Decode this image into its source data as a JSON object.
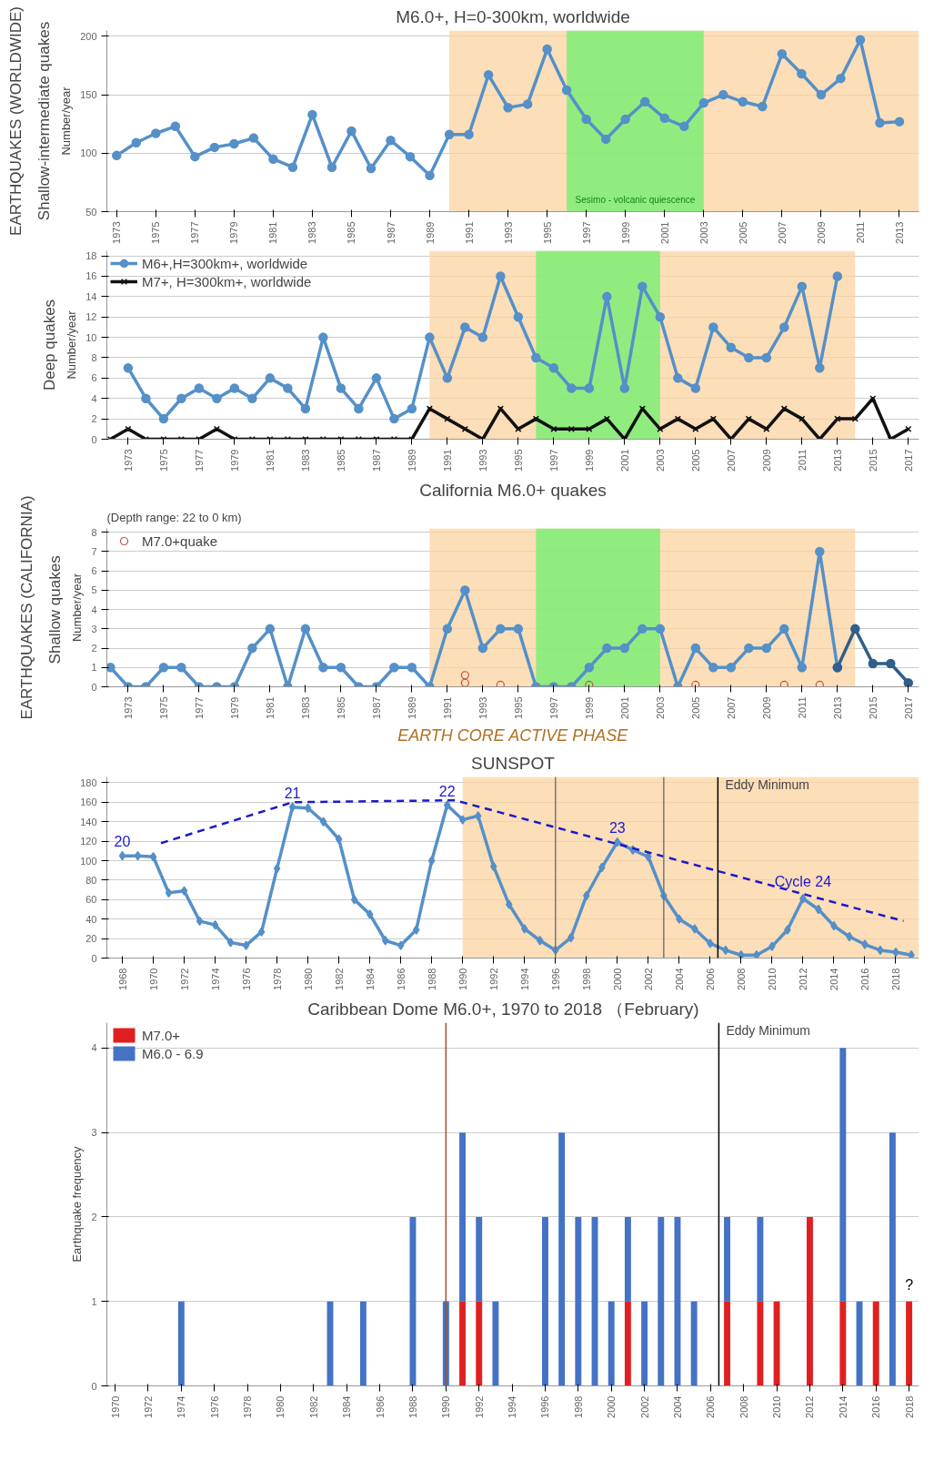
{
  "chart_data": [
    {
      "type": "line",
      "title": "M6.0+, H=0-300km, worldwide",
      "ylabel": "Number/year",
      "annotations": [
        "Shallow-intermediate quakes",
        "EARTHQUAKES (WORLDWIDE)"
      ],
      "x": [
        1973,
        1974,
        1975,
        1976,
        1977,
        1978,
        1979,
        1980,
        1981,
        1982,
        1983,
        1984,
        1985,
        1986,
        1987,
        1988,
        1989,
        1990,
        1991,
        1992,
        1993,
        1994,
        1995,
        1996,
        1997,
        1998,
        1999,
        2000,
        2001,
        2002,
        2003,
        2004,
        2005,
        2006,
        2007,
        2008,
        2009,
        2010,
        2011,
        2012,
        2013
      ],
      "series": [
        {
          "color": "#5590c8",
          "values": [
            98,
            109,
            117,
            123,
            97,
            105,
            108,
            113,
            95,
            88,
            133,
            88,
            119,
            87,
            111,
            97,
            81,
            116,
            116,
            167,
            139,
            142,
            189,
            154,
            129,
            112,
            129,
            144,
            130,
            123,
            143,
            150,
            144,
            140,
            185,
            168,
            150,
            164,
            197,
            126,
            127
          ]
        }
      ],
      "marker": "circle",
      "xlim": [
        1972.5,
        2014
      ],
      "ylim": [
        50,
        205
      ],
      "yticks": [
        50,
        100,
        150,
        200
      ],
      "xticks": [
        1973,
        1975,
        1977,
        1979,
        1981,
        1983,
        1985,
        1987,
        1989,
        1991,
        1993,
        1995,
        1997,
        1999,
        2001,
        2003,
        2005,
        2007,
        2009,
        2011,
        2013
      ],
      "bands": [
        {
          "axis": "x",
          "from": 1990,
          "to": 2014,
          "color": "#fbd3a0"
        },
        {
          "axis": "x",
          "from": 1996,
          "to": 2003,
          "color": "#6ef06e",
          "label": "Sesimo - volcanic quiescence"
        }
      ],
      "grid": "y"
    },
    {
      "type": "line",
      "ylabel": "Number/year",
      "annotations": [
        "Deep quakes"
      ],
      "series": [
        {
          "name": "M6+,H=300km+, worldwide",
          "color": "#5590c8",
          "x": [
            1973,
            1974,
            1975,
            1976,
            1977,
            1978,
            1979,
            1980,
            1981,
            1982,
            1983,
            1984,
            1985,
            1986,
            1987,
            1988,
            1989,
            1990,
            1991,
            1992,
            1993,
            1994,
            1995,
            1996,
            1997,
            1998,
            1999,
            2000,
            2001,
            2002,
            2003,
            2004,
            2005,
            2006,
            2007,
            2008,
            2009,
            2010,
            2011,
            2012,
            2013
          ],
          "values": [
            7,
            4,
            2,
            4,
            5,
            4,
            5,
            4,
            6,
            5,
            3,
            10,
            5,
            3,
            6,
            2,
            3,
            10,
            6,
            11,
            10,
            16,
            12,
            8,
            7,
            5,
            5,
            14,
            5,
            15,
            12,
            6,
            5,
            11,
            9,
            8,
            8,
            11,
            15,
            7,
            16
          ]
        },
        {
          "name": "M7+, H=300km+, worldwide",
          "color": "#111111",
          "marker": "cross",
          "x": [
            1972,
            1973,
            1974,
            1975,
            1976,
            1977,
            1978,
            1979,
            1980,
            1981,
            1982,
            1983,
            1984,
            1985,
            1986,
            1987,
            1988,
            1989,
            1990,
            1991,
            1992,
            1993,
            1994,
            1995,
            1996,
            1997,
            1998,
            1999,
            2000,
            2001,
            2002,
            2003,
            2004,
            2005,
            2006,
            2007,
            2008,
            2009,
            2010,
            2011,
            2012,
            2013,
            2014,
            2015,
            2016,
            2017
          ],
          "values": [
            0,
            1,
            0,
            0,
            0,
            0,
            1,
            0,
            0,
            0,
            0,
            0,
            0,
            0,
            0,
            0,
            0,
            0,
            3,
            2,
            1,
            0,
            3,
            1,
            2,
            1,
            1,
            1,
            2,
            0,
            3,
            1,
            2,
            1,
            2,
            0,
            2,
            1,
            3,
            2,
            0,
            2,
            2,
            4,
            0,
            1
          ]
        }
      ],
      "marker": "circle",
      "legend": "top left",
      "xlim": [
        1971.8,
        2017.6
      ],
      "ylim": [
        0,
        18.5
      ],
      "yticks": [
        0,
        2,
        4,
        6,
        8,
        10,
        12,
        14,
        16,
        18
      ],
      "xticks": [
        1973,
        1975,
        1977,
        1979,
        1981,
        1983,
        1985,
        1987,
        1989,
        1991,
        1993,
        1995,
        1997,
        1999,
        2001,
        2003,
        2005,
        2007,
        2009,
        2011,
        2013,
        2015,
        2017
      ],
      "bands": [
        {
          "axis": "x",
          "from": 1990,
          "to": 2014,
          "color": "#fbd3a0"
        },
        {
          "axis": "x",
          "from": 1996,
          "to": 2003,
          "color": "#6ef06e"
        }
      ],
      "grid": "y"
    },
    {
      "type": "line",
      "title": "California M6.0+ quakes",
      "subtitle": "(Depth range:  22 to 0 km)",
      "ylabel": "Number/year",
      "xlabel": "EARTH CORE ACTIVE PHASE",
      "annotations": [
        "Shallow  quakes",
        "EARTHQUAKES (CALIFORNIA)"
      ],
      "series": [
        {
          "color": "#5590c8",
          "x": [
            1972,
            1973,
            1974,
            1975,
            1976,
            1977,
            1978,
            1979,
            1980,
            1981,
            1982,
            1983,
            1984,
            1985,
            1986,
            1987,
            1988,
            1989,
            1990,
            1991,
            1992,
            1993,
            1994,
            1995,
            1996,
            1997,
            1998,
            1999,
            2000,
            2001,
            2002,
            2003,
            2004,
            2005,
            2006,
            2007,
            2008,
            2009,
            2010,
            2011,
            2012,
            2013
          ],
          "values": [
            1,
            0,
            0,
            1,
            1,
            0,
            0,
            0,
            2,
            3,
            0,
            3,
            1,
            1,
            0,
            0,
            1,
            1,
            0,
            3,
            5,
            2,
            3,
            3,
            0,
            0,
            0,
            1,
            2,
            2,
            3,
            3,
            0,
            2,
            1,
            1,
            2,
            2,
            3,
            1,
            7,
            1
          ]
        },
        {
          "color": "#2f5f8a",
          "x": [
            2013,
            2014,
            2015,
            2016,
            2017
          ],
          "values": [
            1,
            3,
            1.2,
            1.2,
            0.2
          ]
        },
        {
          "name": "M7.0+quake",
          "type": "scatter",
          "color": "#c0504d",
          "x": [
            1992,
            1992,
            1994,
            1999,
            2005,
            2010,
            2012
          ],
          "values": [
            0.6,
            0.2,
            0.1,
            0.1,
            0.1,
            0.1,
            0.1
          ]
        }
      ],
      "marker": "circle",
      "legend": "top left",
      "xlim": [
        1971.8,
        2017.6
      ],
      "ylim": [
        0,
        8.2
      ],
      "yticks": [
        0,
        1,
        2,
        3,
        4,
        5,
        6,
        7,
        8
      ],
      "xticks": [
        1973,
        1975,
        1977,
        1979,
        1981,
        1983,
        1985,
        1987,
        1989,
        1991,
        1993,
        1995,
        1997,
        1999,
        2001,
        2003,
        2005,
        2007,
        2009,
        2011,
        2013,
        2015,
        2017
      ],
      "bands": [
        {
          "axis": "x",
          "from": 1990,
          "to": 2014,
          "color": "#fbd3a0"
        },
        {
          "axis": "x",
          "from": 1996,
          "to": 2003,
          "color": "#6ef06e"
        }
      ],
      "grid": "y"
    },
    {
      "type": "line",
      "title": "SUNSPOT",
      "annotations": [
        {
          "text": "20",
          "x": 1968,
          "y": 105
        },
        {
          "text": "21",
          "x": 1979,
          "y": 155
        },
        {
          "text": "22",
          "x": 1989,
          "y": 157
        },
        {
          "text": "23",
          "x": 2000,
          "y": 119
        },
        {
          "text": "Cycle 24",
          "x": 2012,
          "y": 61
        }
      ],
      "series": [
        {
          "color": "#5590c8",
          "x": [
            1968,
            1969,
            1970,
            1971,
            1972,
            1973,
            1974,
            1975,
            1976,
            1977,
            1978,
            1979,
            1980,
            1981,
            1982,
            1983,
            1984,
            1985,
            1986,
            1987,
            1988,
            1989,
            1990,
            1991,
            1992,
            1993,
            1994,
            1995,
            1996,
            1997,
            1998,
            1999,
            2000,
            2001,
            2002,
            2003,
            2004,
            2005,
            2006,
            2007,
            2008,
            2009,
            2010,
            2011,
            2012,
            2013,
            2014,
            2015,
            2016,
            2017,
            2018,
            2019
          ],
          "values": [
            105,
            105,
            104,
            67,
            69,
            38,
            34,
            16,
            13,
            27,
            92,
            155,
            154,
            140,
            122,
            60,
            45,
            18,
            13,
            29,
            100,
            157,
            142,
            146,
            94,
            55,
            30,
            18,
            8,
            21,
            64,
            93,
            119,
            111,
            104,
            64,
            40,
            30,
            15,
            8,
            3,
            3,
            12,
            29,
            61,
            50,
            33,
            22,
            14,
            8,
            6,
            3
          ]
        },
        {
          "type": "line",
          "color": "#1a1acc",
          "marker": "none",
          "line_style": "dashed",
          "x": [
            1970.5,
            1979,
            1989.5,
            2018.5
          ],
          "values": [
            118,
            160,
            162,
            38
          ]
        }
      ],
      "marker": "diamond",
      "xlim": [
        1967,
        2019.5
      ],
      "ylim": [
        0,
        186
      ],
      "yticks": [
        0,
        20,
        40,
        60,
        80,
        100,
        120,
        140,
        160,
        180
      ],
      "xticks": [
        1968,
        1970,
        1972,
        1974,
        1976,
        1978,
        1980,
        1982,
        1984,
        1986,
        1988,
        1990,
        1992,
        1994,
        1996,
        1998,
        2000,
        2002,
        2004,
        2006,
        2008,
        2010,
        2012,
        2014,
        2016,
        2018
      ],
      "bands": [
        {
          "axis": "x",
          "from": 1990,
          "to": 2019.5,
          "color": "#fbd3a0"
        }
      ],
      "ref_lines": [
        {
          "axis": "x",
          "value": 1996,
          "color": "#777777"
        },
        {
          "axis": "x",
          "value": 2003,
          "color": "#777777"
        },
        {
          "axis": "x",
          "value": 2006.5,
          "color": "#000000",
          "label": "Eddy  Minimum"
        }
      ],
      "grid": "y"
    },
    {
      "type": "bar",
      "title": "Caribbean  Dome    M6.0+, 1970 to 2018 （February)",
      "ylabel": "Earthquake frequency",
      "stacked": true,
      "annotations": [
        {
          "text": "?",
          "x": 2018,
          "y": 1
        }
      ],
      "x": [
        1974,
        1983,
        1985,
        1988,
        1990,
        1991,
        1992,
        1993,
        1996,
        1997,
        1998,
        1999,
        2000,
        2001,
        2002,
        2003,
        2004,
        2005,
        2007,
        2009,
        2010,
        2012,
        2014,
        2015,
        2016,
        2017,
        2018
      ],
      "series": [
        {
          "name": "M7.0+",
          "color": "#e02020",
          "values": [
            null,
            null,
            null,
            null,
            null,
            1,
            1,
            null,
            null,
            null,
            null,
            null,
            null,
            1,
            null,
            null,
            null,
            null,
            1,
            1,
            1,
            2,
            1,
            null,
            1,
            null,
            1
          ]
        },
        {
          "name": "M6.0 - 6.9",
          "color": "#4472c4",
          "values": [
            1,
            1,
            1,
            2,
            1,
            2,
            1,
            1,
            2,
            3,
            2,
            2,
            1,
            1,
            1,
            2,
            2,
            1,
            1,
            1,
            null,
            null,
            3,
            1,
            null,
            3,
            null
          ]
        }
      ],
      "legend": "top left",
      "xlim": [
        1969.5,
        2018.6
      ],
      "ylim": [
        0,
        4.3
      ],
      "yticks": [
        0,
        1,
        2,
        3,
        4
      ],
      "xticks": [
        1970,
        1972,
        1974,
        1976,
        1978,
        1980,
        1982,
        1984,
        1986,
        1988,
        1990,
        1992,
        1994,
        1996,
        1998,
        2000,
        2002,
        2004,
        2006,
        2008,
        2010,
        2012,
        2014,
        2016,
        2018
      ],
      "ref_lines": [
        {
          "axis": "x",
          "value": 1990,
          "color": "#a0522d"
        },
        {
          "axis": "x",
          "value": 2006.5,
          "color": "#000000",
          "label": "Eddy Minimum"
        }
      ],
      "grid": "y"
    }
  ]
}
